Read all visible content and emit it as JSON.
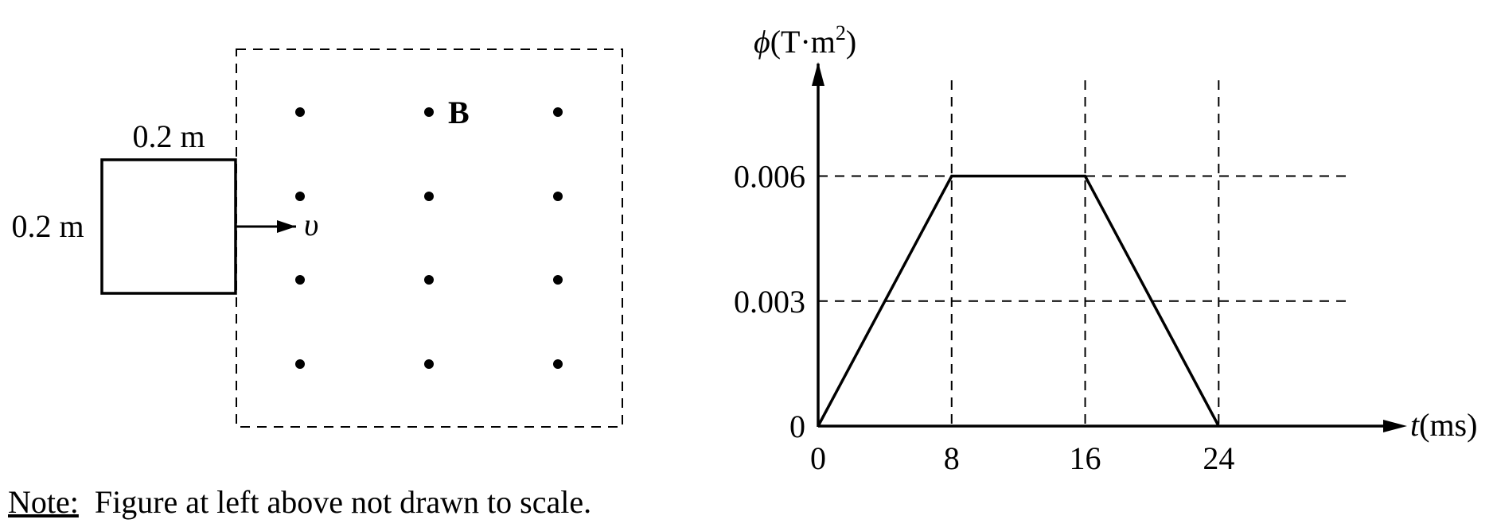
{
  "left_figure": {
    "loop_top_label": "0.2 m",
    "loop_side_label": "0.2 m",
    "velocity_label": "υ",
    "field_label": "B",
    "dot_grid": {
      "columns": 3,
      "rows": 4
    }
  },
  "chart_data": {
    "type": "line",
    "ylabel": "ϕ",
    "ylabel_unit": "(T·m",
    "ylabel_sup": "2",
    "ylabel_close": ")",
    "xlabel": "t",
    "xlabel_unit": "(ms)",
    "x_ticks": [
      0,
      8,
      16,
      24
    ],
    "y_ticks": [
      0,
      0.003,
      0.006
    ],
    "x_tick_labels": [
      "0",
      "8",
      "16",
      "24"
    ],
    "y_tick_labels": [
      "0",
      "0.003",
      "0.006"
    ],
    "xlim": [
      0,
      35
    ],
    "ylim": [
      0,
      0.0087
    ],
    "grid": "dashed",
    "series": [
      {
        "x": [
          0,
          8,
          16,
          24
        ],
        "y": [
          0,
          0.006,
          0.006,
          0
        ]
      }
    ]
  },
  "note": {
    "label": "Note:",
    "text": "  Figure at left above not drawn to scale."
  }
}
